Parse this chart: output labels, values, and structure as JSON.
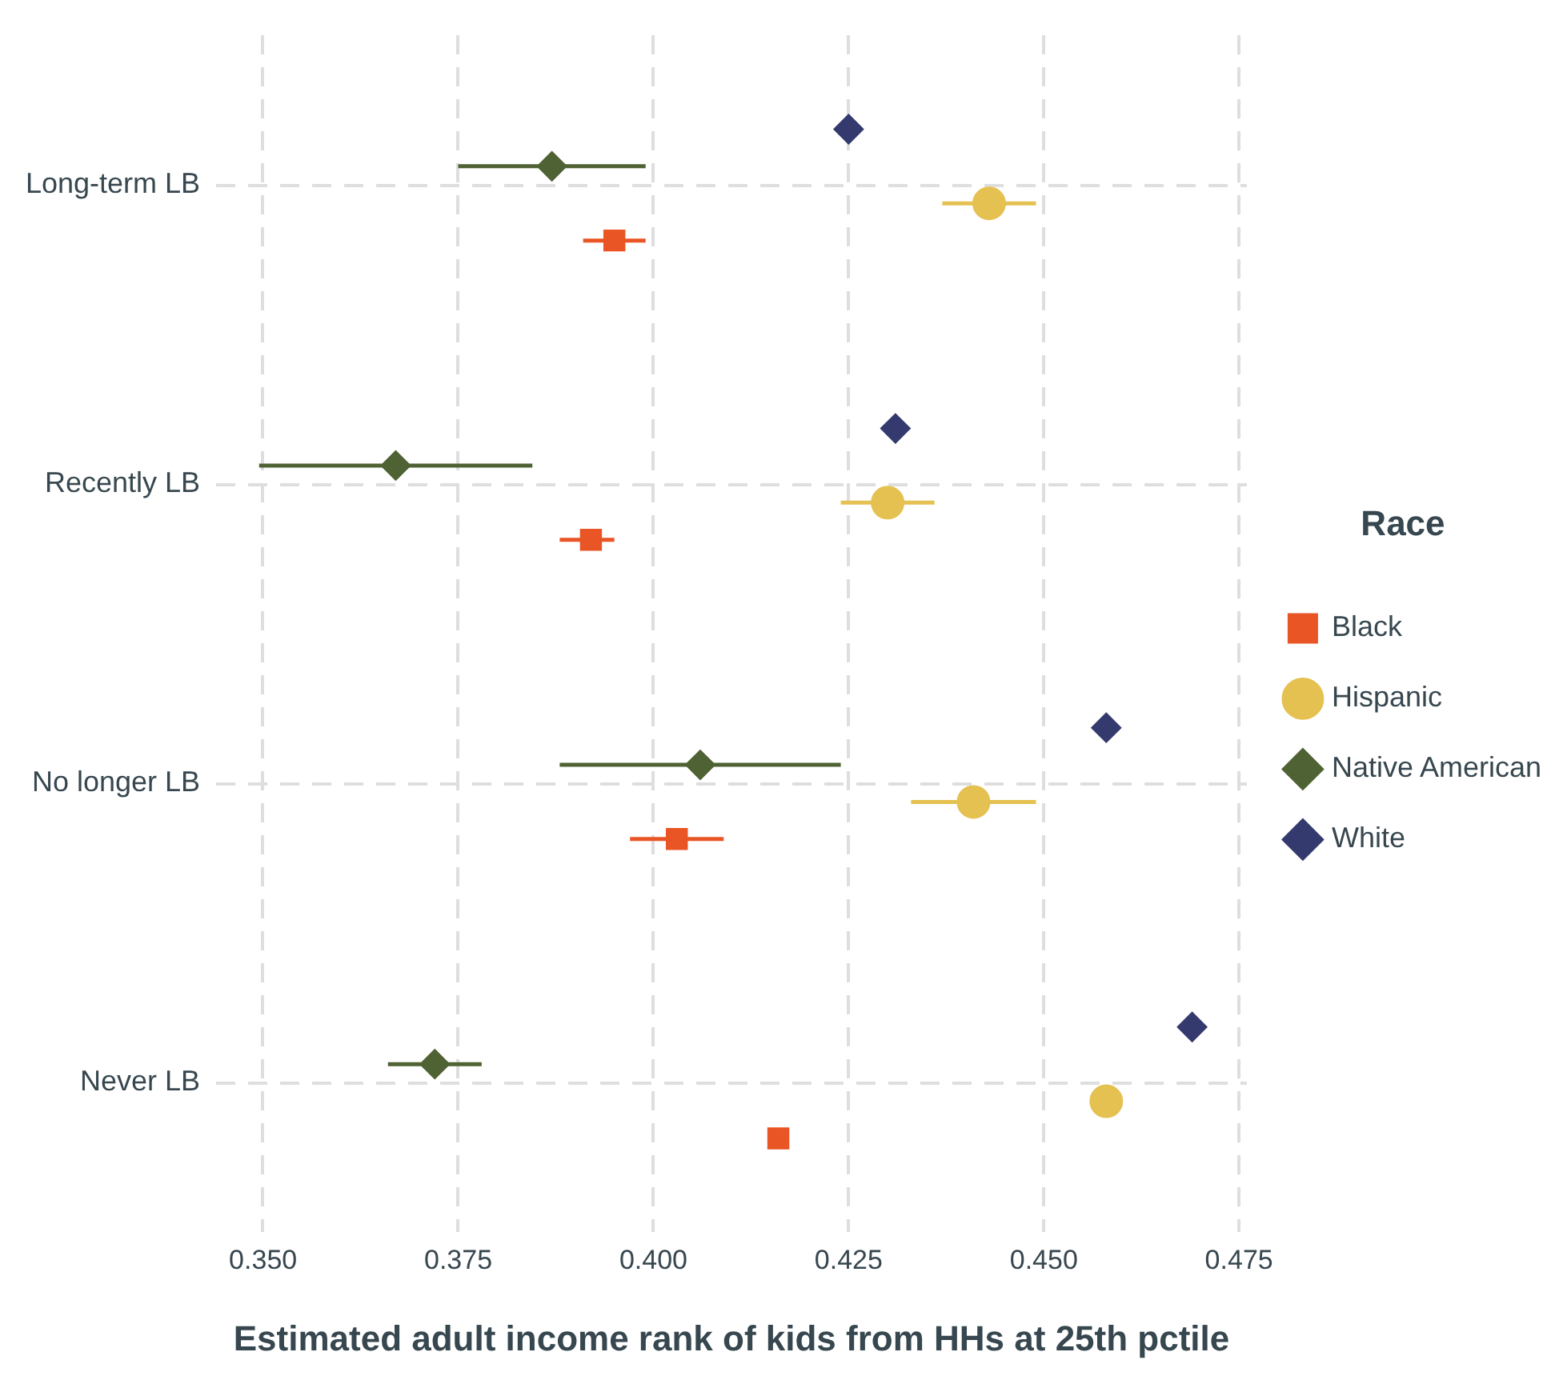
{
  "chart_data": {
    "type": "scatter",
    "xlabel": "Estimated adult income rank of kids from HHs at 25th pctile",
    "legend_title": "Race",
    "categories": [
      "Long-term LB",
      "Recently LB",
      "No longer LB",
      "Never LB"
    ],
    "orientation": "horizontal",
    "xlim": [
      0.344,
      0.476
    ],
    "xticks": [
      {
        "value": 0.35,
        "label": "0.350"
      },
      {
        "value": 0.375,
        "label": "0.375"
      },
      {
        "value": 0.4,
        "label": "0.400"
      },
      {
        "value": 0.425,
        "label": "0.425"
      },
      {
        "value": 0.45,
        "label": "0.450"
      },
      {
        "value": 0.475,
        "label": "0.475"
      }
    ],
    "grid": true,
    "legend": "right",
    "series": [
      {
        "name": "Black",
        "color": "#e95525",
        "marker": "square",
        "values": [
          0.395,
          0.392,
          0.403,
          0.416
        ],
        "errors": [
          [
            0.391,
            0.399
          ],
          [
            0.388,
            0.395
          ],
          [
            0.397,
            0.409
          ],
          null
        ]
      },
      {
        "name": "Hispanic",
        "color": "#e5c152",
        "marker": "circle",
        "values": [
          0.443,
          0.43,
          0.441,
          0.458
        ],
        "errors": [
          [
            0.437,
            0.449
          ],
          [
            0.424,
            0.436
          ],
          [
            0.433,
            0.449
          ],
          null
        ]
      },
      {
        "name": "Native American",
        "color": "#4f6233",
        "marker": "diamond",
        "values": [
          0.387,
          0.367,
          0.406,
          0.372
        ],
        "errors": [
          [
            0.375,
            0.399
          ],
          [
            0.3495,
            0.3845
          ],
          [
            0.388,
            0.424
          ],
          [
            0.366,
            0.378
          ]
        ]
      },
      {
        "name": "White",
        "color": "#343a6e",
        "marker": "diamond",
        "values": [
          0.425,
          0.431,
          0.458,
          0.469
        ]
      }
    ]
  }
}
